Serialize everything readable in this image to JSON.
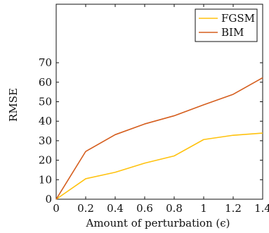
{
  "chart_data": {
    "type": "line",
    "xlabel": "Amount of perturbation (ϵ)",
    "ylabel": "RMSE",
    "x": [
      0,
      0.2,
      0.4,
      0.6,
      0.8,
      1.0,
      1.2,
      1.4
    ],
    "x_tick_labels": [
      "0",
      "0.2",
      "0.4",
      "0.6",
      "0.8",
      "1",
      "1.2",
      "1.4"
    ],
    "y_tick_values": [
      0,
      10,
      20,
      30,
      40,
      50,
      60,
      70
    ],
    "y_tick_labels": [
      "0",
      "10",
      "20",
      "30",
      "40",
      "50",
      "60",
      "70"
    ],
    "xlim": [
      0,
      1.4
    ],
    "ylim": [
      0,
      100
    ],
    "grid": false,
    "legend_position": "top-right",
    "series": [
      {
        "name": "FGSM",
        "color": "#FFC20E",
        "values": [
          0,
          10.5,
          13.8,
          18.5,
          22.2,
          30.6,
          32.8,
          33.9
        ]
      },
      {
        "name": "BIM",
        "color": "#D55E1E",
        "values": [
          0,
          24.5,
          33.1,
          38.6,
          42.8,
          48.4,
          53.8,
          62.3
        ]
      }
    ]
  }
}
